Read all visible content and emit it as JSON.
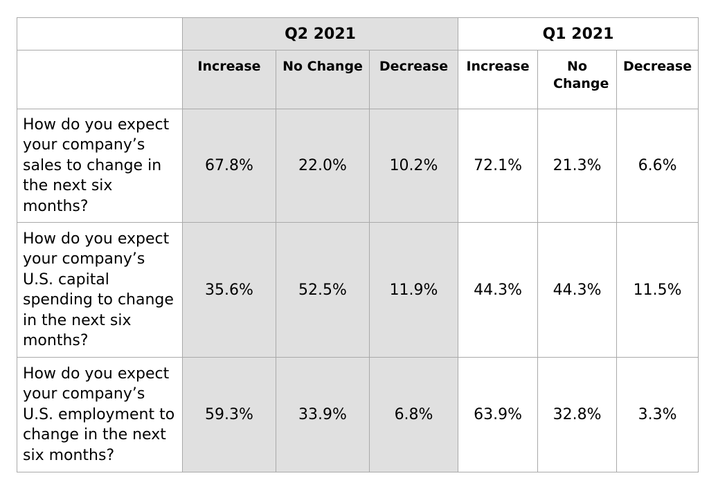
{
  "chart_data": {
    "type": "table",
    "periods": [
      "Q2 2021",
      "Q1 2021"
    ],
    "columns": [
      "Increase",
      "No Change",
      "Decrease"
    ],
    "rows": [
      {
        "question": "How do you expect your company’s sales to change in the next six months?",
        "values": [
          "67.8%",
          "22.0%",
          "10.2%",
          "72.1%",
          "21.3%",
          "6.6%"
        ]
      },
      {
        "question": "How do you expect your company’s U.S. capital spending to change in the next six months?",
        "values": [
          "35.6%",
          "52.5%",
          "11.9%",
          "44.3%",
          "44.3%",
          "11.5%"
        ]
      },
      {
        "question": "How do you expect your company’s U.S. employment to change in the next six months?",
        "values": [
          "59.3%",
          "33.9%",
          "6.8%",
          "63.9%",
          "32.8%",
          "3.3%"
        ]
      }
    ]
  },
  "colors": {
    "shaded_period": "#e0e0e0",
    "border": "#a9a9a9"
  }
}
